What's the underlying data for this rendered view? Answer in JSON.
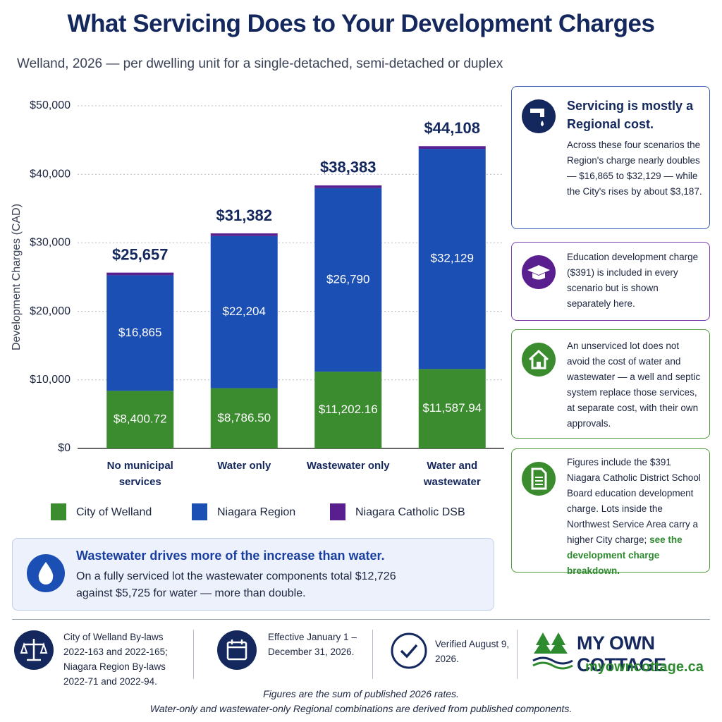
{
  "header": {
    "title": "What Servicing Does to Your Development Charges",
    "subtitle": "Welland, 2026 — per dwelling unit for a single-detached, semi-detached or duplex"
  },
  "chart_data": {
    "type": "stacked_bar",
    "y_label": "Development Charges (CAD)",
    "categories": [
      "No municipal services",
      "Water only",
      "Wastewater only",
      "Water and wastewater"
    ],
    "series": [
      {
        "name": "City of Welland",
        "color": "#3b8b2f",
        "values": [
          8400.72,
          8786.5,
          11202.16,
          11587.94
        ],
        "value_labels": [
          "$8,400.72",
          "$8,786.50",
          "$11,202.16",
          "$11,587.94"
        ]
      },
      {
        "name": "Niagara Region",
        "color": "#1b4fb3",
        "values": [
          16865,
          22204,
          26790,
          32129
        ],
        "value_labels": [
          "$16,865",
          "$22,204",
          "$26,790",
          "$32,129"
        ]
      },
      {
        "name": "Niagara Catholic DSB",
        "color": "#5a1f8e",
        "values": [
          391,
          391,
          391,
          391
        ]
      }
    ],
    "totals": [
      25657,
      31382,
      38383,
      44108
    ],
    "total_labels": [
      "$25,657",
      "$31,382",
      "$38,383",
      "$44,108"
    ],
    "ylim": [
      0,
      50000
    ],
    "yticks": [
      {
        "value": 0,
        "label": "$0"
      },
      {
        "value": 10000,
        "label": "$10,000"
      },
      {
        "value": 20000,
        "label": "$20,000"
      },
      {
        "value": 30000,
        "label": "$30,000"
      },
      {
        "value": 40000,
        "label": "$40,000"
      },
      {
        "value": 50000,
        "label": "$50,000"
      }
    ],
    "grid": true
  },
  "panels": [
    {
      "title": "Servicing is mostly a Regional cost.",
      "body": "Across these four scenarios the Region's charge nearly doubles — $16,865 to $32,129 — while the City's rises by about $3,187."
    },
    {
      "body": "Education development charge ($391) is included in every scenario but is shown separately here."
    },
    {
      "body": "An unserviced lot does not avoid the cost of water and wastewater — a well and septic system replace those services, at separate cost, with their own approvals."
    },
    {
      "body": "Figures include the $391 Niagara Catholic District School Board education development charge. Lots inside the Northwest Service Area carry a higher City charge;",
      "link": "see the development charge breakdown."
    }
  ],
  "callout": {
    "title": "Wastewater drives more of the increase than water.",
    "body": "On a fully serviced lot the wastewater components total $12,726 against $5,725 for water — more than double."
  },
  "footer": {
    "items": [
      "City of Welland By-laws 2022-163 and 2022-165; Niagara Region By-laws 2022-71 and 2022-94.",
      "Effective January 1 – December 31, 2026.",
      "Verified August 9, 2026."
    ],
    "brand": {
      "name": "MY OWN COTTAGE",
      "url": "myowncottage.ca"
    },
    "notes": [
      "Figures are the sum of published 2026 rates.",
      "Water-only and wastewater-only Regional combinations are derived from published components."
    ]
  }
}
